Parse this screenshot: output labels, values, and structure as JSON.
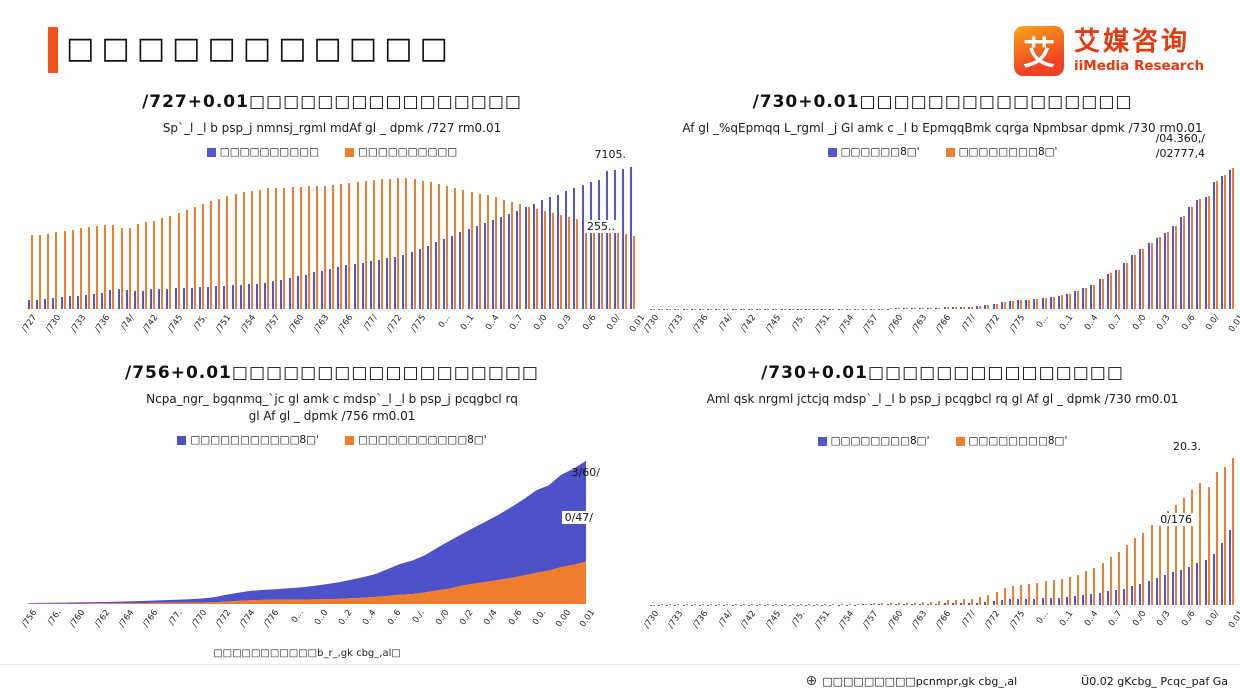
{
  "page": {
    "title": "□□□□□□□□□□□",
    "accent_color": "#F4511E"
  },
  "logo": {
    "mark": "艾",
    "name_cn": "艾媒咨询",
    "name_en": "iiMedia Research",
    "color": "#E8380D"
  },
  "footer": {
    "globe_icon": "⊕",
    "source_link": "□□□□□□□□□pcnmpr,gk cbg_,al",
    "copyright": "Ü0.02 gKcbg_ Pcqc_paf Ga"
  },
  "chart_data": [
    {
      "type": "bar",
      "title": "/727+0.01□□□□□□□□□□□□□□□□",
      "subtitle": "Sp`_l _l b psp_j nmnsj_rgml mdAf gl _ dpmk /727 rm0.01",
      "grid": false,
      "legend_position": "top",
      "ymax": 95000,
      "x_tick_labels": [
        "/727",
        "/730",
        "/733",
        "/736",
        "/74/",
        "/742",
        "/745",
        "/75.",
        "/751",
        "/754",
        "/757",
        "/760",
        "/763",
        "/766",
        "/77/",
        "/772",
        "/775",
        "0...",
        "0..1",
        "0..4",
        "0..7",
        "0./0",
        "0./3",
        "0./6",
        "0.0/",
        "0.01"
      ],
      "series": [
        {
          "name": "□□□□□□□□□□",
          "color": "#5456CE",
          "values": [
            5765,
            6169,
            6632,
            7163,
            7826,
            8249,
            8285,
            9185,
            9949,
            10721,
            12371,
            13073,
            12707,
            11659,
            11646,
            12950,
            13045,
            13313,
            13548,
            13838,
            14117,
            14424,
            14711,
            14935,
            15345,
            15595,
            16030,
            16341,
            16669,
            17245,
            18495,
            19140,
            20171,
            21480,
            22274,
            24017,
            25094,
            26366,
            27674,
            28661,
            29540,
            30195,
            31203,
            32175,
            33173,
            34169,
            35174,
            37304,
            39449,
            41608,
            43748,
            45906,
            48064,
            50212,
            52376,
            54283,
            56212,
            58288,
            60633,
            62403,
            64512,
            66978,
            69079,
            71182,
            73111,
            74916,
            77116,
            79298,
            81347,
            83137,
            84843,
            90220,
            91425,
            92071,
            93267
          ]
        },
        {
          "name": "□□□□□□□□□□",
          "color": "#ED7D31",
          "values": [
            48402,
            48740,
            49059,
            50319,
            50973,
            51720,
            53180,
            53658,
            54704,
            55273,
            54836,
            53134,
            53152,
            55636,
            56904,
            57919,
            59493,
            61229,
            62820,
            64696,
            66551,
            68568,
            70518,
            72242,
            73866,
            75264,
            76390,
            77376,
            78316,
            79014,
            79047,
            79565,
            79901,
            80174,
            80734,
            80340,
            80757,
            81141,
            81626,
            82365,
            83164,
            84138,
            84620,
            84996,
            85344,
            85681,
            85947,
            85085,
            84177,
            83153,
            82038,
            80837,
            79563,
            78241,
            76851,
            75705,
            74544,
            73160,
            71496,
            70399,
            68938,
            67113,
            65656,
            64222,
            62961,
            61866,
            60346,
            58973,
            57661,
            56401,
            55162,
            50992,
            49835,
            49104,
            47700
          ]
        }
      ],
      "annotations": [
        {
          "text": "7105."
        },
        {
          "text": "255.."
        }
      ]
    },
    {
      "type": "bar",
      "title": "/730+0.01□□□□□□□□□□□□□□□□",
      "subtitle": "Af gl _%qEpmqq L_rgml _j Gl amk c _l b EpmqqBmk cqrga Npmbsar dpmk /730 rm0.01",
      "grid": false,
      "legend_position": "top",
      "ymax": 1300000,
      "x_tick_labels": [
        "/730",
        "/733",
        "/736",
        "/74/",
        "/742",
        "/745",
        "/75.",
        "/751",
        "/754",
        "/757",
        "/760",
        "/763",
        "/766",
        "/77/",
        "/772",
        "/775",
        "0...",
        "0..1",
        "0..4",
        "0..7",
        "0./0",
        "0./3",
        "0./6",
        "0.0/",
        "0.01"
      ],
      "series": [
        {
          "name": "□□□□□□8□'",
          "color": "#5456CE",
          "values": [
            674,
            818,
            852,
            904,
            1022,
            1063,
            1302,
            1436,
            1458,
            1222,
            1153,
            1238,
            1457,
            1720,
            1873,
            1780,
            1730,
            1946,
            2261,
            2437,
            2516,
            2710,
            2781,
            2989,
            2937,
            3195,
            3649,
            4067,
            4550,
            4896,
            5330,
            5972,
            7220,
            9025,
            10293,
            12077,
            15059,
            17042,
            18721,
            21829,
            26976,
            35388,
            48248,
            60848,
            71238,
            79077,
            84513,
            89839,
            99478,
            109976,
            120743,
            136323,
            160545,
            185819,
            217682,
            267931,
            316690,
            345729,
            408822,
            484036,
            534272,
            588219,
            638415,
            683347,
            740424,
            825379,
            911927,
            978623,
            1005457,
            1140043,
            1195087,
            1249990
          ]
        },
        {
          "name": "□□□□□□□□8□'",
          "color": "#ED7D31",
          "values": [
            679,
            824,
            859,
            911,
            1030,
            1071,
            1312,
            1447,
            1470,
            1232,
            1162,
            1248,
            1469,
            1734,
            1888,
            1794,
            1744,
            1962,
            2279,
            2456,
            2536,
            2732,
            2803,
            3013,
            2961,
            3221,
            3678,
            4100,
            4587,
            4935,
            5373,
            6020,
            7278,
            9098,
            10376,
            12174,
            15180,
            17179,
            18872,
            22005,
            27194,
            35673,
            48637,
            61339,
            71813,
            79715,
            85195,
            90564,
            100280,
            110863,
            121717,
            137422,
            161840,
            187318,
            219438,
            270092,
            319244,
            348517,
            412119,
            487940,
            538580,
            592963,
            643563,
            688858,
            746395,
            832035,
            919281,
            986515,
            1013567,
            1149237,
            1204724,
            1260582
          ]
        }
      ],
      "annotations": [
        {
          "text": "/04.360,/"
        },
        {
          "text": "/02777,4"
        }
      ]
    },
    {
      "type": "area",
      "title": "/756+0.01□□□□□□□□□□□□□□□□□□",
      "subtitle": "Ncpa_ngr_ bgqnmq_`jc gl amk c mdsp`_l _l b psp_j pcqgbcl rq",
      "subtitle2": "gl Af gl _ dpmk /756 rm0.01",
      "grid": false,
      "legend_position": "top",
      "stacked": true,
      "ymax": 78000,
      "x_tick_labels": [
        "/756",
        "/76.",
        "/760",
        "/762",
        "/764",
        "/766",
        "/77.",
        "/770",
        "/772",
        "/774",
        "/776",
        "0...",
        "0..0",
        "0..2",
        "0..4",
        "0..6",
        "0./.",
        "0./0",
        "0./2",
        "0./4",
        "0./6",
        "0.0.",
        "0.00",
        "0.01"
      ],
      "series": [
        {
          "name": "□□□□□□□□□□□8□'",
          "color": "#4F51C8",
          "values": [
            343,
            405,
            478,
            500,
            535,
            573,
            660,
            739,
            900,
            1002,
            1181,
            1376,
            1510,
            1701,
            2027,
            2577,
            3496,
            4283,
            4839,
            5160,
            5425,
            5854,
            6256,
            6860,
            7703,
            8472,
            9422,
            10493,
            11760,
            13786,
            15781,
            17175,
            19109,
            21810,
            24565,
            26467,
            28844,
            31195,
            33616,
            36396,
            39251,
            42359,
            43834,
            47412,
            49283,
            51821
          ]
        },
        {
          "name": "□□□□□□□□□□□8□'",
          "color": "#EF7D2B",
          "values": [
            134,
            160,
            191,
            223,
            270,
            310,
            355,
            398,
            424,
            463,
            545,
            602,
            686,
            709,
            784,
            922,
            1221,
            1578,
            1926,
            2090,
            2162,
            2210,
            2253,
            2366,
            2476,
            2622,
            2936,
            3255,
            3587,
            4140,
            4761,
            5153,
            5919,
            6977,
            7917,
            9430,
            10489,
            11422,
            12363,
            13432,
            14617,
            16021,
            17131,
            18931,
            20133,
            21691
          ]
        }
      ],
      "annotations": [
        {
          "text": "3/60/"
        },
        {
          "text": "0/47/"
        }
      ],
      "footnote": "□□□□□□□□□□□b_r_,gk cbg_,al□"
    },
    {
      "type": "bar",
      "title": "/730+0.01□□□□□□□□□□□□□□□",
      "subtitle": "Aml qsk nrgml jctcjq mdsp`_l _l b psp_j pcqgbcl rq gl Af gl _ dpmk /730 rm0.01",
      "grid": false,
      "legend_position": "top",
      "ymax": 43500,
      "x_tick_labels": [
        "/730",
        "/733",
        "/736",
        "/74/",
        "/742",
        "/745",
        "/75.",
        "/751",
        "/754",
        "/757",
        "/760",
        "/763",
        "/766",
        "/77/",
        "/772",
        "/775",
        "0...",
        "0..1",
        "0..4",
        "0..7",
        "0./0",
        "0./3",
        "0./6",
        "0.0/",
        "0.01"
      ],
      "series": [
        {
          "name": "□□□□□□□□8□'",
          "color": "#5456CE",
          "values": [
            65,
            69,
            72,
            76,
            81,
            84,
            88,
            93,
            97,
            95,
            100,
            106,
            112,
            118,
            122,
            120,
            119,
            123,
            127,
            130,
            133,
            137,
            140,
            144,
            147,
            151,
            158,
            180,
            196,
            211,
            224,
            248,
            274,
            324,
            370,
            417,
            508,
            553,
            571,
            621,
            718,
            855,
            1118,
            1434,
            1679,
            1756,
            1791,
            1860,
            1917,
            2032,
            2157,
            2292,
            2521,
            2784,
            3066,
            3538,
            3981,
            4295,
            4700,
            5508,
            6161,
            7009,
            7773,
            8575,
            9377,
            10130,
            10955,
            12124,
            12985,
            14601,
            17821,
            21398
          ]
        },
        {
          "name": "□□□□□□□□8□'",
          "color": "#ED7D31",
          "values": [
            149,
            159,
            164,
            171,
            180,
            186,
            195,
            206,
            214,
            209,
            226,
            246,
            266,
            288,
            299,
            295,
            293,
            305,
            312,
            320,
            327,
            340,
            350,
            363,
            370,
            383,
            405,
            453,
            496,
            531,
            552,
            592,
            660,
            802,
            920,
            1089,
            1431,
            1568,
            1596,
            1840,
            2262,
            2924,
            3852,
            4931,
            5532,
            5823,
            5967,
            6266,
            6850,
            7113,
            7387,
            7901,
            8679,
            9644,
            10739,
            12130,
            13853,
            15160,
            17104,
            19205,
            20717,
            22880,
            24741,
            26814,
            28591,
            30767,
            32994,
            35002,
            33642,
            38165,
            39391,
            42050
          ]
        }
      ],
      "annotations": [
        {
          "text": "20.3."
        },
        {
          "text": "0/176"
        }
      ]
    }
  ]
}
